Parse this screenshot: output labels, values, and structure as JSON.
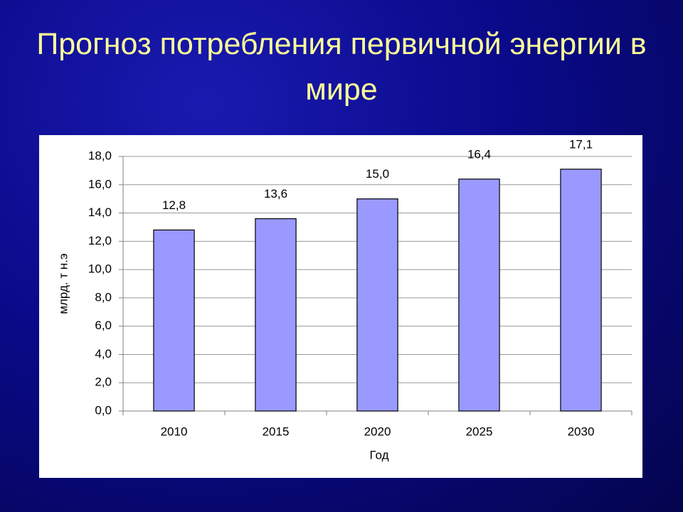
{
  "chart_data": {
    "type": "bar",
    "title": "Прогноз потребления первичной энергии в мире",
    "x_label": "Год",
    "y_label": "млрд. т н.э",
    "categories": [
      "2010",
      "2015",
      "2020",
      "2025",
      "2030"
    ],
    "values": [
      12.8,
      13.6,
      15.0,
      16.4,
      17.1
    ],
    "value_labels": [
      "12,8",
      "13,6",
      "15,0",
      "16,4",
      "17,1"
    ],
    "color": "#9999ff",
    "ylim": [
      0,
      18
    ],
    "yticks": [
      {
        "value": 0,
        "label": "0,0"
      },
      {
        "value": 2,
        "label": "2,0"
      },
      {
        "value": 4,
        "label": "4,0"
      },
      {
        "value": 6,
        "label": "6,0"
      },
      {
        "value": 8,
        "label": "8,0"
      },
      {
        "value": 10,
        "label": "10,0"
      },
      {
        "value": 12,
        "label": "12,0"
      },
      {
        "value": 14,
        "label": "14,0"
      },
      {
        "value": 16,
        "label": "16,0"
      },
      {
        "value": 18,
        "label": "18,0"
      }
    ],
    "grid": true
  }
}
